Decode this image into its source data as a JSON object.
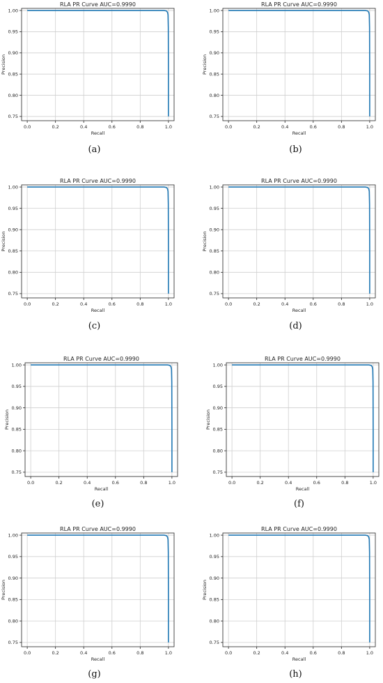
{
  "chart_data": [
    {
      "panel": "(a)",
      "type": "line",
      "title": "RLA PR Curve AUC=0.9990",
      "xlabel": "Recall",
      "ylabel": "Precision",
      "xlim": [
        -0.04,
        1.04
      ],
      "ylim": [
        0.74,
        1.005
      ],
      "xticks": [
        "0.0",
        "0.2",
        "0.4",
        "0.6",
        "0.8",
        "1.0"
      ],
      "yticks": [
        "0.75",
        "0.80",
        "0.85",
        "0.90",
        "0.95",
        "1.00"
      ],
      "grid": true,
      "series": [
        {
          "color": "#1f77b4",
          "x": [
            0.0,
            0.97,
            0.985,
            0.993,
            0.997,
            0.999,
            1.0,
            1.0
          ],
          "y": [
            1.0,
            1.0,
            0.999,
            0.996,
            0.99,
            0.96,
            0.85,
            0.75
          ]
        }
      ]
    },
    {
      "panel": "(b)",
      "type": "line",
      "title": "RLA PR Curve AUC=0.9990",
      "xlabel": "Recall",
      "ylabel": "Precision",
      "xlim": [
        -0.04,
        1.04
      ],
      "ylim": [
        0.74,
        1.005
      ],
      "xticks": [
        "0.0",
        "0.2",
        "0.4",
        "0.6",
        "0.8",
        "1.0"
      ],
      "yticks": [
        "0.75",
        "0.80",
        "0.85",
        "0.90",
        "0.95",
        "1.00"
      ],
      "grid": true,
      "series": [
        {
          "color": "#1f77b4",
          "x": [
            0.0,
            0.97,
            0.985,
            0.993,
            0.997,
            0.999,
            1.0,
            1.0
          ],
          "y": [
            1.0,
            1.0,
            0.999,
            0.996,
            0.99,
            0.96,
            0.85,
            0.75
          ]
        }
      ]
    },
    {
      "panel": "(c)",
      "type": "line",
      "title": "RLA PR Curve AUC=0.9990",
      "xlabel": "Recall",
      "ylabel": "Precision",
      "xlim": [
        -0.04,
        1.04
      ],
      "ylim": [
        0.74,
        1.005
      ],
      "xticks": [
        "0.0",
        "0.2",
        "0.4",
        "0.6",
        "0.8",
        "1.0"
      ],
      "yticks": [
        "0.75",
        "0.80",
        "0.85",
        "0.90",
        "0.95",
        "1.00"
      ],
      "grid": true,
      "series": [
        {
          "color": "#1f77b4",
          "x": [
            0.0,
            0.97,
            0.985,
            0.993,
            0.997,
            0.999,
            1.0,
            1.0
          ],
          "y": [
            1.0,
            1.0,
            0.999,
            0.996,
            0.99,
            0.96,
            0.85,
            0.75
          ]
        }
      ]
    },
    {
      "panel": "(d)",
      "type": "line",
      "title": "RLA PR Curve AUC=0.9990",
      "xlabel": "Recall",
      "ylabel": "Precision",
      "xlim": [
        -0.04,
        1.04
      ],
      "ylim": [
        0.74,
        1.005
      ],
      "xticks": [
        "0.0",
        "0.2",
        "0.4",
        "0.6",
        "0.8",
        "1.0"
      ],
      "yticks": [
        "0.75",
        "0.80",
        "0.85",
        "0.90",
        "0.95",
        "1.00"
      ],
      "grid": true,
      "series": [
        {
          "color": "#1f77b4",
          "x": [
            0.0,
            0.97,
            0.985,
            0.993,
            0.997,
            0.999,
            1.0,
            1.0
          ],
          "y": [
            1.0,
            1.0,
            0.999,
            0.996,
            0.99,
            0.96,
            0.85,
            0.75
          ]
        }
      ]
    },
    {
      "panel": "(e)",
      "type": "line",
      "title": "RLA PR Curve AUC=0.9990",
      "xlabel": "Recall",
      "ylabel": "Precision",
      "xlim": [
        -0.04,
        1.04
      ],
      "ylim": [
        0.74,
        1.005
      ],
      "xticks": [
        "0.0",
        "0.2",
        "0.4",
        "0.6",
        "0.8",
        "1.0"
      ],
      "yticks": [
        "0.75",
        "0.80",
        "0.85",
        "0.90",
        "0.95",
        "1.00"
      ],
      "grid": true,
      "series": [
        {
          "color": "#1f77b4",
          "x": [
            0.0,
            0.97,
            0.985,
            0.993,
            0.997,
            0.999,
            1.0,
            1.0
          ],
          "y": [
            1.0,
            1.0,
            0.999,
            0.996,
            0.99,
            0.96,
            0.85,
            0.75
          ]
        }
      ]
    },
    {
      "panel": "(f)",
      "type": "line",
      "title": "RLA PR Curve AUC=0.9990",
      "xlabel": "Recall",
      "ylabel": "Precision",
      "xlim": [
        -0.04,
        1.04
      ],
      "ylim": [
        0.74,
        1.005
      ],
      "xticks": [
        "0.0",
        "0.2",
        "0.4",
        "0.6",
        "0.8",
        "1.0"
      ],
      "yticks": [
        "0.75",
        "0.80",
        "0.85",
        "0.90",
        "0.95",
        "1.00"
      ],
      "grid": true,
      "series": [
        {
          "color": "#1f77b4",
          "x": [
            0.0,
            0.97,
            0.985,
            0.993,
            0.997,
            0.999,
            1.0,
            1.0
          ],
          "y": [
            1.0,
            1.0,
            0.999,
            0.996,
            0.99,
            0.96,
            0.85,
            0.75
          ]
        }
      ]
    },
    {
      "panel": "(g)",
      "type": "line",
      "title": "RLA PR Curve AUC=0.9990",
      "xlabel": "Recall",
      "ylabel": "Precision",
      "xlim": [
        -0.04,
        1.04
      ],
      "ylim": [
        0.74,
        1.005
      ],
      "xticks": [
        "0.0",
        "0.2",
        "0.4",
        "0.6",
        "0.8",
        "1.0"
      ],
      "yticks": [
        "0.75",
        "0.80",
        "0.85",
        "0.90",
        "0.95",
        "1.00"
      ],
      "grid": true,
      "series": [
        {
          "color": "#1f77b4",
          "x": [
            0.0,
            0.97,
            0.985,
            0.993,
            0.997,
            0.999,
            1.0,
            1.0
          ],
          "y": [
            1.0,
            1.0,
            0.999,
            0.996,
            0.99,
            0.96,
            0.85,
            0.75
          ]
        }
      ]
    },
    {
      "panel": "(h)",
      "type": "line",
      "title": "RLA PR Curve AUC=0.9990",
      "xlabel": "Recall",
      "ylabel": "Precision",
      "xlim": [
        -0.04,
        1.04
      ],
      "ylim": [
        0.74,
        1.005
      ],
      "xticks": [
        "0.0",
        "0.2",
        "0.4",
        "0.6",
        "0.8",
        "1.0"
      ],
      "yticks": [
        "0.75",
        "0.80",
        "0.85",
        "0.90",
        "0.95",
        "1.00"
      ],
      "grid": true,
      "series": [
        {
          "color": "#1f77b4",
          "x": [
            0.0,
            0.97,
            0.985,
            0.993,
            0.997,
            0.999,
            1.0,
            1.0
          ],
          "y": [
            1.0,
            1.0,
            0.999,
            0.996,
            0.99,
            0.96,
            0.85,
            0.75
          ]
        }
      ]
    }
  ]
}
